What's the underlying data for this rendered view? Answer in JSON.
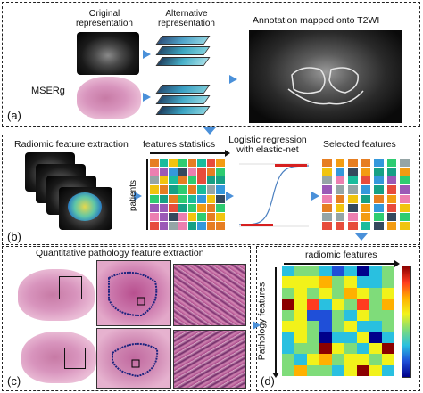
{
  "panel_a": {
    "label": "(a)",
    "original_title": "Original representation",
    "alternative_title": "Alternative representation",
    "annotation_title": "Annotation mapped onto T2WI",
    "method_label": "MSERg"
  },
  "panel_b": {
    "label": "(b)",
    "radiomic_title": "Radiomic feature extraction",
    "stats_title": "features statistics",
    "logistic_title": "Logistic regression with elastic-net",
    "selected_title": "Selected features",
    "patients_label": "patients"
  },
  "panel_c": {
    "label": "(c)",
    "title": "Quantitative pathology feature extraction"
  },
  "panel_d": {
    "label": "(d)",
    "radiomic_features_label": "radiomic features",
    "pathology_features_label": "Pathology features"
  },
  "colors": {
    "arrow": "#4a90d9",
    "border": "#222222"
  }
}
